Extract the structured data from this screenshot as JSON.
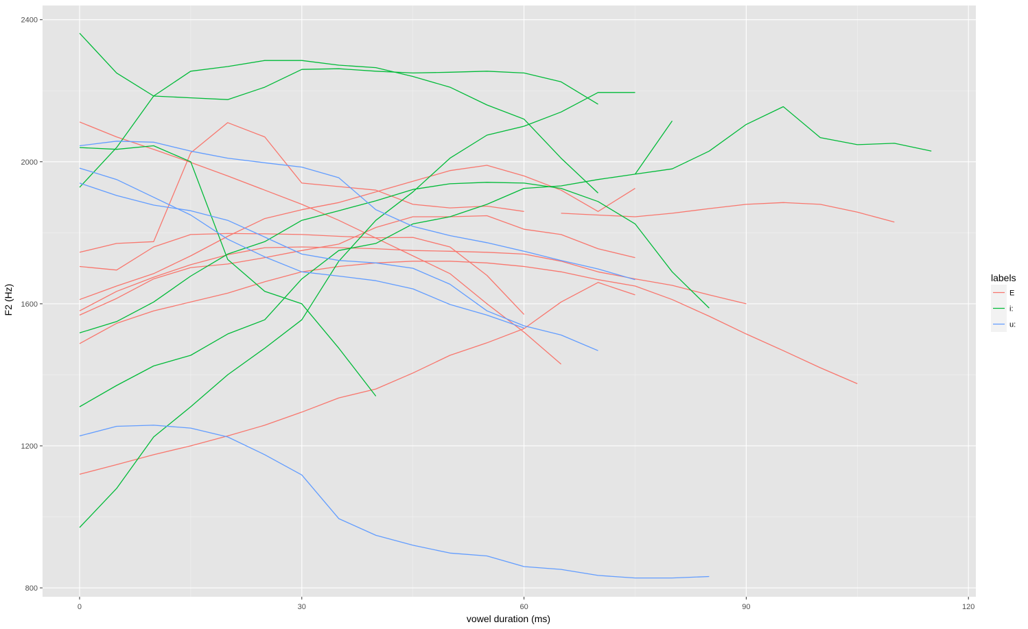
{
  "chart_data": {
    "type": "line",
    "xlabel": "vowel duration (ms)",
    "ylabel": "F2 (Hz)",
    "xlim": [
      -5,
      121
    ],
    "ylim": [
      775,
      2440
    ],
    "x_ticks": [
      0,
      30,
      60,
      90,
      120
    ],
    "y_ticks": [
      800,
      1200,
      1600,
      2000,
      2400
    ],
    "grid": true,
    "legend": {
      "title": "labels",
      "placement": "right",
      "entries": [
        "E",
        "i:",
        "u:"
      ]
    },
    "colors": {
      "E": "#f8766d",
      "i:": "#00ba38",
      "u:": "#619cff",
      "panel": "#e5e5e5",
      "grid": "#ffffff",
      "ticks": "#333333"
    },
    "series": [
      {
        "label": "E",
        "x": [
          0,
          5,
          10,
          15,
          20,
          25,
          30,
          35,
          40,
          45,
          50,
          55,
          60,
          65,
          70,
          75
        ],
        "y": [
          2112,
          2070,
          2035,
          1998,
          1960,
          1920,
          1880,
          1835,
          1785,
          1735,
          1685,
          1600,
          1520,
          1430,
          null,
          null
        ]
      },
      {
        "label": "E",
        "x": [
          0,
          5,
          10,
          15,
          20,
          25,
          30,
          35,
          40,
          45,
          50,
          55,
          60
        ],
        "y": [
          1745,
          1770,
          1775,
          2025,
          2110,
          2070,
          1940,
          1930,
          1920,
          1880,
          1870,
          1875,
          1860
        ]
      },
      {
        "label": "E",
        "x": [
          0,
          5,
          10,
          15,
          20,
          25,
          30,
          35,
          40,
          45,
          50,
          55,
          60,
          65,
          70,
          75
        ],
        "y": [
          1705,
          1695,
          1760,
          1795,
          1798,
          1797,
          1795,
          1790,
          1786,
          1787,
          1760,
          1680,
          1570,
          null,
          null,
          null
        ]
      },
      {
        "label": "E",
        "x": [
          0,
          5,
          10,
          15,
          20,
          25,
          30,
          35,
          40,
          45,
          50,
          55,
          60,
          65,
          70,
          75
        ],
        "y": [
          1612,
          1650,
          1685,
          1735,
          1790,
          1840,
          1865,
          1885,
          1915,
          1945,
          1975,
          1990,
          1960,
          1920,
          1860,
          1925
        ]
      },
      {
        "label": "E",
        "x": [
          0,
          5,
          10,
          15,
          20,
          25,
          30,
          35,
          40,
          45,
          50,
          55,
          60,
          65,
          70,
          75
        ],
        "y": [
          1580,
          1635,
          1675,
          1710,
          1738,
          1758,
          1760,
          1758,
          1755,
          1750,
          1748,
          1745,
          1740,
          1720,
          1690,
          1670
        ]
      },
      {
        "label": "E",
        "x": [
          0,
          5,
          10,
          15,
          20,
          25,
          30,
          35,
          40,
          45,
          50,
          55,
          60,
          65,
          70,
          75,
          80,
          85,
          90,
          95,
          100,
          105,
          110
        ],
        "y": [
          1568,
          1615,
          1670,
          1702,
          1712,
          1730,
          1750,
          1768,
          1815,
          1845,
          1845,
          1848,
          1810,
          1795,
          1755,
          1730,
          null,
          null,
          null,
          null,
          null,
          null,
          null
        ]
      },
      {
        "label": "E",
        "x": [
          0,
          5,
          10,
          15,
          20,
          25,
          30,
          35,
          40,
          45,
          50,
          55,
          60,
          65,
          70,
          75,
          80,
          85,
          90,
          95,
          100,
          105,
          110
        ],
        "y": [
          1488,
          1545,
          1580,
          1605,
          1630,
          1662,
          1690,
          1705,
          1715,
          1720,
          1720,
          1715,
          1705,
          1690,
          1668,
          1650,
          1612,
          1565,
          1515,
          1468,
          1420,
          1375,
          null
        ]
      },
      {
        "label": "E",
        "x": [
          0,
          5,
          10,
          15,
          20,
          25,
          30,
          35,
          40,
          45,
          50,
          55,
          60,
          65,
          70,
          75,
          80,
          85,
          90
        ],
        "y": [
          1120,
          1147,
          1175,
          1200,
          1228,
          1258,
          1295,
          1335,
          1360,
          1405,
          1455,
          1490,
          1530,
          1605,
          1660,
          1625,
          null,
          null,
          null
        ]
      },
      {
        "label": "E",
        "x": [
          65,
          70,
          75,
          80,
          85,
          90,
          95,
          100,
          105,
          110
        ],
        "y": [
          1855,
          1850,
          1845,
          1855,
          1868,
          1880,
          1885,
          1880,
          1858,
          1830
        ]
      },
      {
        "label": "E",
        "x": [
          75,
          80,
          85,
          90
        ],
        "y": [
          1670,
          1652,
          1625,
          1600
        ]
      },
      {
        "label": "i:",
        "x": [
          0,
          5,
          10,
          15,
          20,
          25,
          30,
          35,
          40,
          45,
          50,
          55,
          60,
          65,
          70
        ],
        "y": [
          2362,
          2250,
          2185,
          2180,
          2175,
          2210,
          2260,
          2262,
          2255,
          2250,
          2252,
          2255,
          2250,
          2225,
          2162
        ]
      },
      {
        "label": "i:",
        "x": [
          0,
          5,
          10,
          15,
          20,
          25,
          30,
          35,
          40,
          45,
          50,
          55,
          60,
          65,
          70
        ],
        "y": [
          1928,
          2040,
          2185,
          2255,
          2268,
          2285,
          2285,
          2272,
          2265,
          2240,
          2210,
          2160,
          2120,
          2010,
          1912
        ]
      },
      {
        "label": "i:",
        "x": [
          0,
          5,
          10,
          15,
          20,
          25,
          30,
          35,
          40
        ],
        "y": [
          2040,
          2035,
          2045,
          2000,
          1725,
          1635,
          1600,
          1475,
          1340
        ]
      },
      {
        "label": "i:",
        "x": [
          0,
          5,
          10,
          15,
          20,
          25,
          30,
          35,
          40,
          45,
          50,
          55,
          60,
          65,
          70,
          75,
          80,
          85
        ],
        "y": [
          1518,
          1550,
          1605,
          1678,
          1740,
          1775,
          1835,
          1862,
          1890,
          1922,
          1938,
          1942,
          1940,
          1925,
          1888,
          1825,
          1690,
          1588
        ]
      },
      {
        "label": "i:",
        "x": [
          0,
          5,
          10,
          15,
          20,
          25,
          30,
          35,
          40,
          45,
          50,
          55,
          60,
          65,
          70,
          75,
          80
        ],
        "y": [
          1310,
          1370,
          1425,
          1455,
          1515,
          1555,
          1670,
          1750,
          1770,
          1825,
          1845,
          1880,
          1925,
          1932,
          1950,
          1965,
          2115
        ]
      },
      {
        "label": "i:",
        "x": [
          0,
          5,
          10,
          15,
          20,
          25,
          30,
          35,
          40,
          45,
          50,
          55,
          60,
          65,
          70,
          75
        ],
        "y": [
          970,
          1080,
          1225,
          1310,
          1400,
          1475,
          1555,
          1720,
          1835,
          1915,
          2010,
          2075,
          2100,
          2140,
          2195,
          2195
        ]
      },
      {
        "label": "i:",
        "x": [
          75,
          80,
          85,
          90,
          95,
          100,
          105,
          110,
          115
        ],
        "y": [
          1965,
          1980,
          2030,
          2105,
          2155,
          2068,
          2048,
          2052,
          2030
        ]
      },
      {
        "label": "u:",
        "x": [
          0,
          5,
          10,
          15,
          20,
          25,
          30,
          35,
          40,
          45,
          50,
          55,
          60,
          65,
          70,
          75
        ],
        "y": [
          2045,
          2058,
          2055,
          2030,
          2010,
          1997,
          1985,
          1955,
          1865,
          1818,
          1792,
          1772,
          1748,
          1722,
          1698,
          1668
        ]
      },
      {
        "label": "u:",
        "x": [
          0,
          5,
          10,
          15,
          20,
          25,
          30,
          35,
          40,
          45,
          50,
          55,
          60
        ],
        "y": [
          1982,
          1950,
          1900,
          1850,
          1782,
          1732,
          1690,
          1678,
          1665,
          1642,
          1598,
          1568,
          1532
        ]
      },
      {
        "label": "u:",
        "x": [
          0,
          5,
          10,
          15,
          20,
          25,
          30,
          35,
          40,
          45,
          50,
          55,
          60,
          65,
          70
        ],
        "y": [
          1940,
          1905,
          1878,
          1862,
          1835,
          1788,
          1740,
          1722,
          1715,
          1700,
          1655,
          1580,
          1538,
          1512,
          1468
        ]
      },
      {
        "label": "u:",
        "x": [
          0,
          5,
          10,
          15,
          20,
          25,
          30,
          35,
          40,
          45,
          50,
          55,
          60,
          65,
          70,
          75,
          80,
          85
        ],
        "y": [
          1228,
          1255,
          1258,
          1250,
          1225,
          1175,
          1118,
          995,
          948,
          920,
          898,
          890,
          860,
          852,
          835,
          828,
          828,
          832
        ]
      }
    ]
  }
}
